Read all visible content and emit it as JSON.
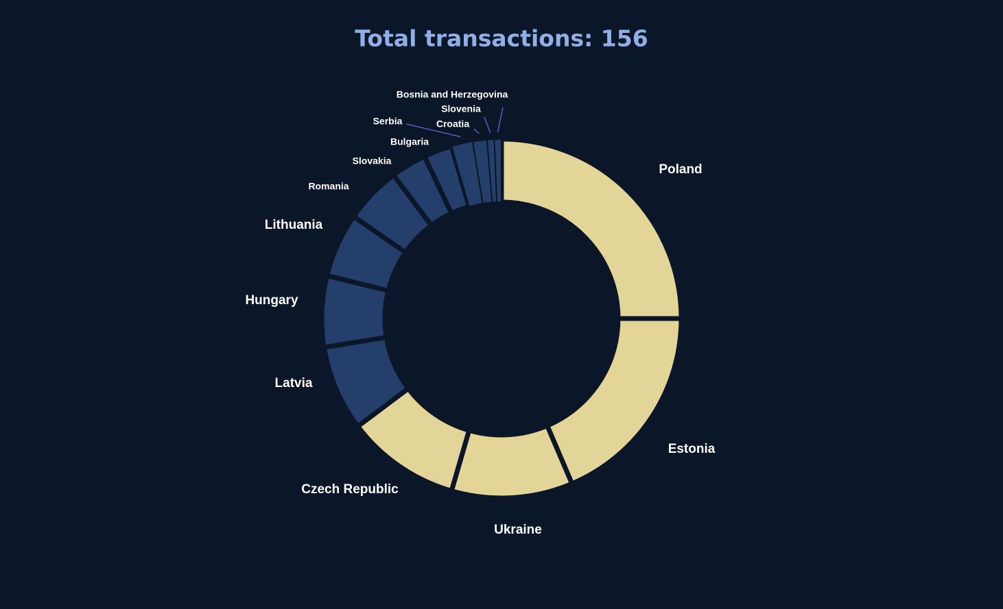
{
  "chart_data": {
    "type": "pie",
    "donut": true,
    "title": "Total transactions: 156",
    "categories": [
      "Poland",
      "Estonia",
      "Ukraine",
      "Czech Republic",
      "Latvia",
      "Hungary",
      "Lithuania",
      "Romania",
      "Slovakia",
      "Bulgaria",
      "Serbia",
      "Croatia",
      "Slovenia",
      "Bosnia and Herzegovina"
    ],
    "values": [
      39,
      29,
      17,
      16,
      12,
      10,
      9,
      8,
      5,
      4,
      3,
      2,
      1,
      1
    ],
    "colors": [
      "#e3d597",
      "#e3d597",
      "#e3d597",
      "#e3d597",
      "#243f6b",
      "#243f6b",
      "#243f6b",
      "#243f6b",
      "#243f6b",
      "#243f6b",
      "#243f6b",
      "#243f6b",
      "#243f6b",
      "#243f6b"
    ]
  }
}
